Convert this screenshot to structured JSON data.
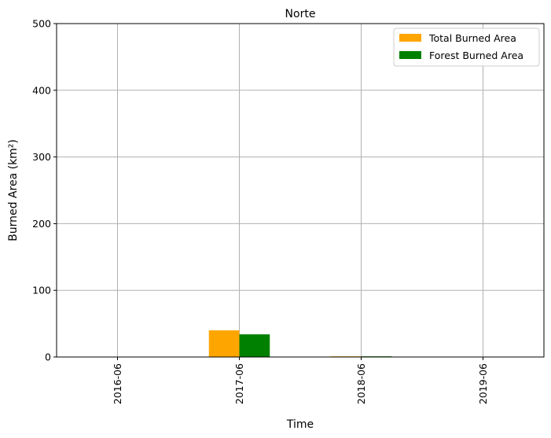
{
  "chart_data": {
    "type": "bar",
    "title": "Norte",
    "xlabel": "Time",
    "ylabel": "Burned Area (km²)",
    "categories": [
      "2016-06",
      "2017-06",
      "2018-06",
      "2019-06"
    ],
    "yticks": [
      0,
      100,
      200,
      300,
      400,
      500
    ],
    "ylim": [
      0,
      500
    ],
    "grid": true,
    "legend_position": "top-right",
    "series": [
      {
        "name": "Total Burned Area",
        "color": "#ffa500",
        "values": [
          0,
          40,
          1,
          0
        ]
      },
      {
        "name": "Forest Burned Area",
        "color": "#008000",
        "values": [
          0,
          34,
          1,
          0
        ]
      }
    ]
  }
}
